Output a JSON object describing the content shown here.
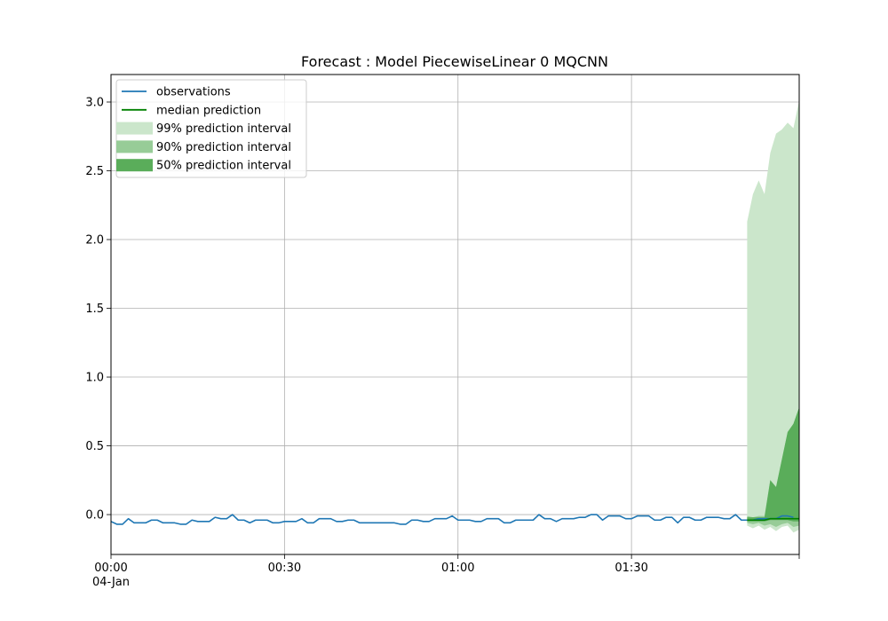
{
  "chart_data": {
    "type": "line",
    "title": "Forecast : Model PiecewiseLinear 0 MQCNN",
    "xlabel": "",
    "ylabel": "",
    "x_unit": "minutes",
    "xlim": [
      0,
      119
    ],
    "ylim": [
      -0.29,
      3.2
    ],
    "x_ticks": [
      {
        "value": 0,
        "label": "00:00",
        "sublabel": "04-Jan"
      },
      {
        "value": 30,
        "label": "00:30",
        "sublabel": ""
      },
      {
        "value": 60,
        "label": "01:00",
        "sublabel": ""
      },
      {
        "value": 90,
        "label": "01:30",
        "sublabel": ""
      },
      {
        "value": 119,
        "label": "",
        "sublabel": ""
      }
    ],
    "y_ticks": [
      {
        "value": 0.0,
        "label": "0.0"
      },
      {
        "value": 0.5,
        "label": "0.5"
      },
      {
        "value": 1.0,
        "label": "1.0"
      },
      {
        "value": 1.5,
        "label": "1.5"
      },
      {
        "value": 2.0,
        "label": "2.0"
      },
      {
        "value": 2.5,
        "label": "2.5"
      },
      {
        "value": 3.0,
        "label": "3.0"
      }
    ],
    "grid": true,
    "legend_position": "top-left",
    "legend": [
      {
        "label": "observations",
        "kind": "line",
        "color": "#1f77b4"
      },
      {
        "label": "median prediction",
        "kind": "line",
        "color": "#008000"
      },
      {
        "label": "99% prediction interval",
        "kind": "band",
        "color": "#cbe6cb"
      },
      {
        "label": "90% prediction interval",
        "kind": "band",
        "color": "#97cc97"
      },
      {
        "label": "50% prediction interval",
        "kind": "band",
        "color": "#5aad5a"
      }
    ],
    "observations": {
      "name": "observations",
      "color": "#1f77b4",
      "x_start": 0,
      "x_step": 1,
      "values": [
        -0.05,
        -0.07,
        -0.07,
        -0.03,
        -0.06,
        -0.06,
        -0.06,
        -0.04,
        -0.04,
        -0.06,
        -0.06,
        -0.06,
        -0.07,
        -0.07,
        -0.04,
        -0.05,
        -0.05,
        -0.05,
        -0.02,
        -0.03,
        -0.03,
        0.0,
        -0.04,
        -0.04,
        -0.06,
        -0.04,
        -0.04,
        -0.04,
        -0.06,
        -0.06,
        -0.05,
        -0.05,
        -0.05,
        -0.03,
        -0.06,
        -0.06,
        -0.03,
        -0.03,
        -0.03,
        -0.05,
        -0.05,
        -0.04,
        -0.04,
        -0.06,
        -0.06,
        -0.06,
        -0.06,
        -0.06,
        -0.06,
        -0.06,
        -0.07,
        -0.07,
        -0.04,
        -0.04,
        -0.05,
        -0.05,
        -0.03,
        -0.03,
        -0.03,
        -0.01,
        -0.04,
        -0.04,
        -0.04,
        -0.05,
        -0.05,
        -0.03,
        -0.03,
        -0.03,
        -0.06,
        -0.06,
        -0.04,
        -0.04,
        -0.04,
        -0.04,
        0.0,
        -0.03,
        -0.03,
        -0.05,
        -0.03,
        -0.03,
        -0.03,
        -0.02,
        -0.02,
        0.0,
        0.0,
        -0.04,
        -0.01,
        -0.01,
        -0.01,
        -0.03,
        -0.03,
        -0.01,
        -0.01,
        -0.01,
        -0.04,
        -0.04,
        -0.02,
        -0.02,
        -0.06,
        -0.02,
        -0.02,
        -0.04,
        -0.04,
        -0.02,
        -0.02,
        -0.02,
        -0.03,
        -0.03,
        0.0,
        -0.04,
        -0.04,
        -0.04,
        -0.03,
        -0.03,
        -0.03,
        -0.03,
        -0.01,
        -0.01,
        -0.02
      ]
    },
    "forecast": {
      "x_start": 110,
      "x_step": 1,
      "median": {
        "name": "median prediction",
        "color": "#008000",
        "values": [
          -0.04,
          -0.04,
          -0.04,
          -0.04,
          -0.03,
          -0.03,
          -0.03,
          -0.03,
          -0.03,
          -0.03
        ]
      },
      "bands": [
        {
          "name": "99% prediction interval",
          "color": "#cbe6cb",
          "lower": [
            -0.08,
            -0.1,
            -0.08,
            -0.11,
            -0.09,
            -0.12,
            -0.09,
            -0.08,
            -0.13,
            -0.11
          ],
          "upper": [
            2.13,
            2.33,
            2.43,
            2.33,
            2.63,
            2.77,
            2.8,
            2.85,
            2.81,
            3.01
          ]
        },
        {
          "name": "90% prediction interval",
          "color": "#97cc97",
          "lower": [
            -0.06,
            -0.07,
            -0.06,
            -0.08,
            -0.07,
            -0.09,
            -0.07,
            -0.06,
            -0.09,
            -0.08
          ],
          "upper": [
            -0.01,
            -0.02,
            -0.01,
            -0.01,
            0.25,
            0.2,
            0.4,
            0.6,
            0.66,
            0.78
          ]
        },
        {
          "name": "50% prediction interval",
          "color": "#5aad5a",
          "lower": [
            -0.05,
            -0.05,
            -0.05,
            -0.05,
            -0.04,
            -0.04,
            -0.04,
            -0.04,
            -0.05,
            -0.05
          ],
          "upper": [
            -0.02,
            -0.02,
            -0.02,
            -0.02,
            0.25,
            0.2,
            0.4,
            0.6,
            0.66,
            0.78
          ]
        }
      ]
    }
  }
}
